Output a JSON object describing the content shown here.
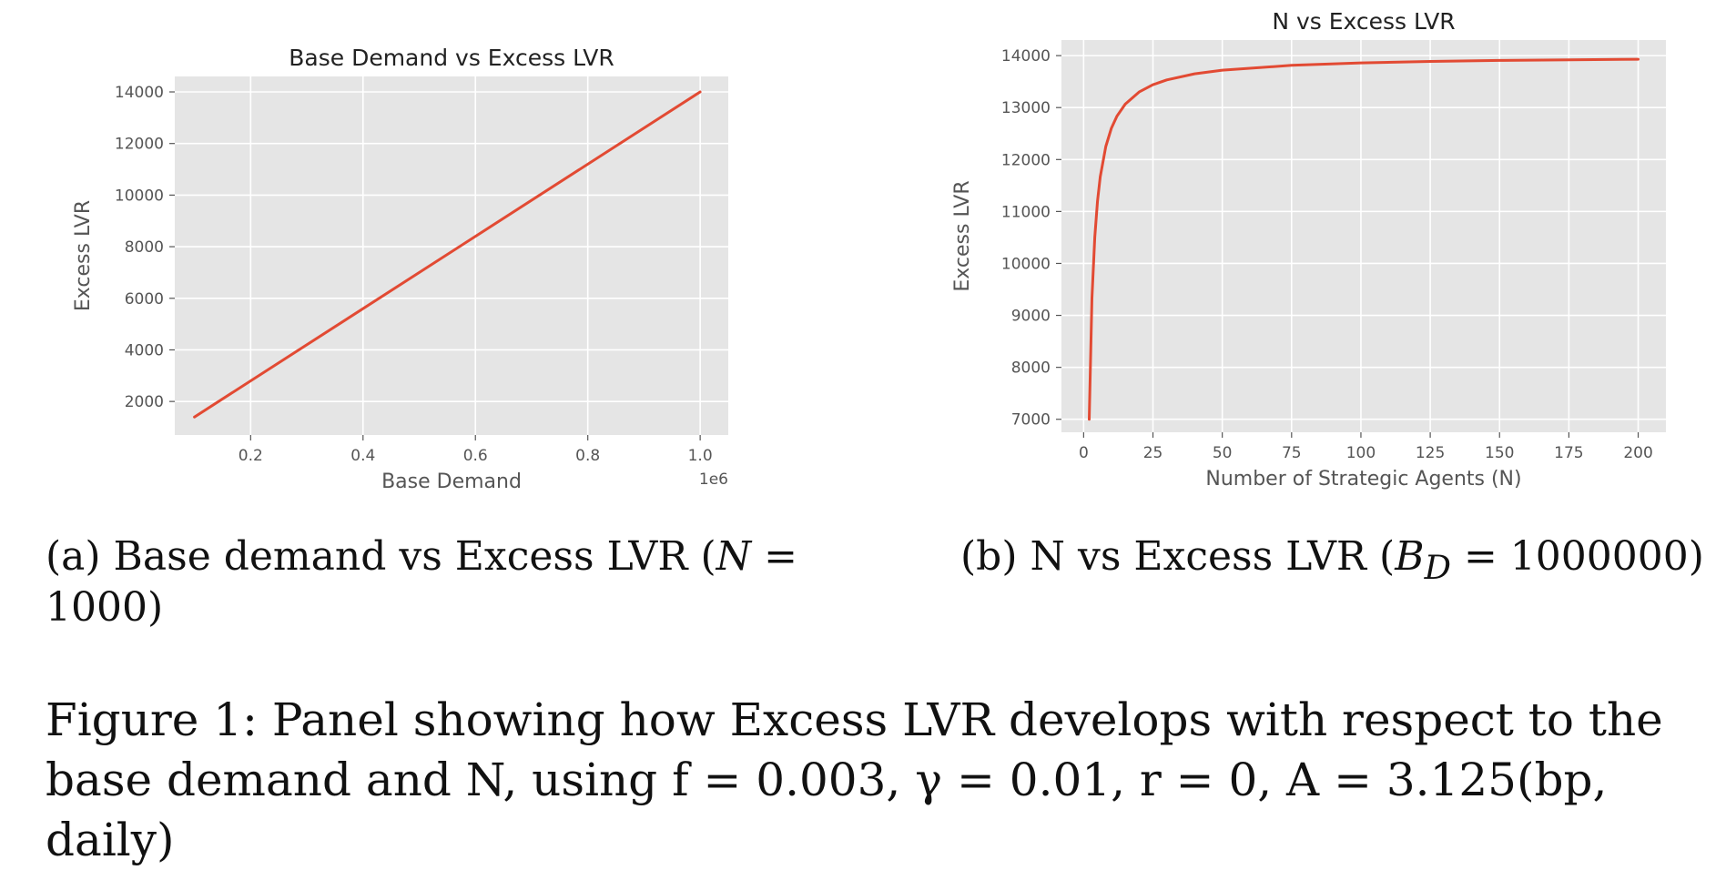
{
  "chart_data": [
    {
      "type": "line",
      "title": "Base Demand vs Excess LVR",
      "xlabel": "Base Demand",
      "ylabel": "Excess LVR",
      "x_offset_label": "1e6",
      "xlim": [
        0.065,
        1.05
      ],
      "ylim": [
        700,
        14600
      ],
      "xticks": [
        0.2,
        0.4,
        0.6,
        0.8,
        1.0
      ],
      "xtick_labels": [
        "0.2",
        "0.4",
        "0.6",
        "0.8",
        "1.0"
      ],
      "yticks": [
        2000,
        4000,
        6000,
        8000,
        10000,
        12000,
        14000
      ],
      "ytick_labels": [
        "2000",
        "4000",
        "6000",
        "8000",
        "10000",
        "12000",
        "14000"
      ],
      "grid": true,
      "series": [
        {
          "x": [
            0.1,
            1.0
          ],
          "y": [
            1400,
            14000
          ],
          "color": "#e24a33"
        }
      ]
    },
    {
      "type": "line",
      "title": "N vs Excess LVR",
      "xlabel": "Number of Strategic Agents (N)",
      "ylabel": "Excess LVR",
      "xlim": [
        -8,
        210
      ],
      "ylim": [
        6750,
        14300
      ],
      "xticks": [
        0,
        25,
        50,
        75,
        100,
        125,
        150,
        175,
        200
      ],
      "xtick_labels": [
        "0",
        "25",
        "50",
        "75",
        "100",
        "125",
        "150",
        "175",
        "200"
      ],
      "yticks": [
        7000,
        8000,
        9000,
        10000,
        11000,
        12000,
        13000,
        14000
      ],
      "ytick_labels": [
        "7000",
        "8000",
        "9000",
        "10000",
        "11000",
        "12000",
        "13000",
        "14000"
      ],
      "grid": true,
      "series": [
        {
          "x": [
            2,
            3,
            4,
            5,
            6,
            8,
            10,
            12,
            15,
            20,
            25,
            30,
            40,
            50,
            75,
            100,
            125,
            150,
            175,
            200
          ],
          "y": [
            7000,
            9333,
            10500,
            11200,
            11667,
            12250,
            12600,
            12833,
            13067,
            13300,
            13440,
            13533,
            13650,
            13720,
            13813,
            13860,
            13888,
            13907,
            13920,
            13930
          ],
          "color": "#e24a33"
        }
      ]
    }
  ],
  "captions": {
    "a_prefix": "(a) Base demand vs Excess LVR (",
    "a_var": "N",
    "a_suffix": " = 1000)",
    "b_prefix": "(b) N vs Excess LVR (",
    "b_var": "B",
    "b_sub": "D",
    "b_suffix": " = 1000000)",
    "figure_text": "Figure 1: Panel showing how Excess LVR develops with respect to the base demand and N, using f = 0.003, γ = 0.01, r = 0, A = 3.125(bp, daily)"
  },
  "colors": {
    "plot_bg": "#e5e5e5",
    "grid": "#ffffff",
    "line": "#e24a33"
  }
}
